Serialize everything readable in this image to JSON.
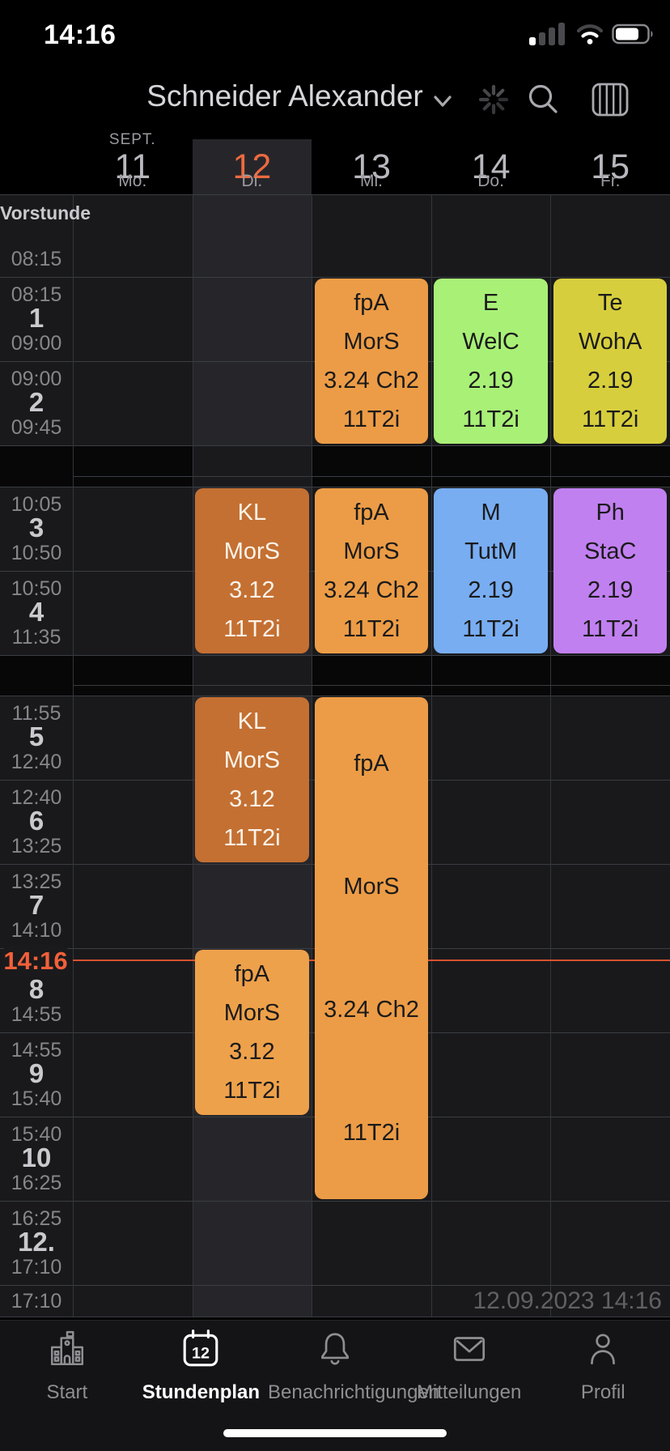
{
  "status_bar": {
    "time": "14:16"
  },
  "header": {
    "title": "Schneider Alexander",
    "icons": [
      "chevron-down",
      "loading-spinner",
      "search",
      "week-view"
    ]
  },
  "week_header": {
    "days": [
      {
        "num": "11",
        "weekday": "Mo.",
        "month": "SEPT.",
        "selected": false
      },
      {
        "num": "12",
        "weekday": "Di.",
        "month": "",
        "selected": true
      },
      {
        "num": "13",
        "weekday": "Mi.",
        "month": "",
        "selected": false
      },
      {
        "num": "14",
        "weekday": "Do.",
        "month": "",
        "selected": false
      },
      {
        "num": "15",
        "weekday": "Fr.",
        "month": "",
        "selected": false
      }
    ]
  },
  "grid": {
    "rows": [
      {
        "id": "vor",
        "kind": "vorstunde",
        "label": "Vorstunde",
        "end": "08:15"
      },
      {
        "id": "1",
        "kind": "period",
        "start": "08:15",
        "num": "1",
        "end": "09:00"
      },
      {
        "id": "2",
        "kind": "period",
        "start": "09:00",
        "num": "2",
        "end": "09:45"
      },
      {
        "id": "b1",
        "kind": "break"
      },
      {
        "id": "3",
        "kind": "period",
        "start": "10:05",
        "num": "3",
        "end": "10:50"
      },
      {
        "id": "4",
        "kind": "period",
        "start": "10:50",
        "num": "4",
        "end": "11:35"
      },
      {
        "id": "b2",
        "kind": "break"
      },
      {
        "id": "5",
        "kind": "period",
        "start": "11:55",
        "num": "5",
        "end": "12:40"
      },
      {
        "id": "6",
        "kind": "period",
        "start": "12:40",
        "num": "6",
        "end": "13:25"
      },
      {
        "id": "7",
        "kind": "period",
        "start": "13:25",
        "num": "7",
        "end": "14:10"
      },
      {
        "id": "8",
        "kind": "period",
        "start": "",
        "num": "8",
        "end": "14:55",
        "start_hidden": true
      },
      {
        "id": "9",
        "kind": "period",
        "start": "14:55",
        "num": "9",
        "end": "15:40"
      },
      {
        "id": "10",
        "kind": "period",
        "start": "15:40",
        "num": "10",
        "end": "16:25"
      },
      {
        "id": "12",
        "kind": "period",
        "start": "16:25",
        "num": "12.",
        "end": "17:10"
      },
      {
        "id": "tail",
        "kind": "tail",
        "start": "17:10"
      }
    ],
    "current_time": {
      "label": "14:16",
      "line_color": "#D6512F"
    },
    "footer_timestamp": "12.09.2023 14:16"
  },
  "lessons": [
    {
      "day": "tue",
      "from": "3",
      "to": "4",
      "subject": "KL",
      "teacher": "MorS",
      "room": "3.12",
      "group": "11T2i",
      "bg": "#C47033",
      "fg": "#FBF3E9"
    },
    {
      "day": "tue",
      "from": "5",
      "to": "6",
      "subject": "KL",
      "teacher": "MorS",
      "room": "3.12",
      "group": "11T2i",
      "bg": "#C47033",
      "fg": "#FBF3E9"
    },
    {
      "day": "tue",
      "from": "8",
      "to": "9",
      "subject": "fpA",
      "teacher": "MorS",
      "room": "3.12",
      "group": "11T2i",
      "bg": "#EEA14B",
      "fg": "#1B1B1B"
    },
    {
      "day": "wed",
      "from": "1",
      "to": "2",
      "subject": "fpA",
      "teacher": "MorS",
      "room": "3.24 Ch2",
      "group": "11T2i",
      "bg": "#EC9C46",
      "fg": "#1B1B1B"
    },
    {
      "day": "wed",
      "from": "3",
      "to": "4",
      "subject": "fpA",
      "teacher": "MorS",
      "room": "3.24 Ch2",
      "group": "11T2i",
      "bg": "#EC9C46",
      "fg": "#1B1B1B"
    },
    {
      "day": "wed",
      "from": "5",
      "to": "10",
      "subject": "fpA",
      "teacher": "MorS",
      "room": "3.24 Ch2",
      "group": "11T2i",
      "bg": "#EC9C46",
      "fg": "#1B1B1B"
    },
    {
      "day": "thu",
      "from": "1",
      "to": "2",
      "subject": "E",
      "teacher": "WelC",
      "room": "2.19",
      "group": "11T2i",
      "bg": "#A9F077",
      "fg": "#1B1B1B"
    },
    {
      "day": "thu",
      "from": "3",
      "to": "4",
      "subject": "M",
      "teacher": "TutM",
      "room": "2.19",
      "group": "11T2i",
      "bg": "#78ADF2",
      "fg": "#1B1B1B"
    },
    {
      "day": "fri",
      "from": "1",
      "to": "2",
      "subject": "Te",
      "teacher": "WohA",
      "room": "2.19",
      "group": "11T2i",
      "bg": "#D7CE3D",
      "fg": "#1B1B1B"
    },
    {
      "day": "fri",
      "from": "3",
      "to": "4",
      "subject": "Ph",
      "teacher": "StaC",
      "room": "2.19",
      "group": "11T2i",
      "bg": "#C180F0",
      "fg": "#1B1B1B"
    }
  ],
  "tab_bar": {
    "items": [
      {
        "id": "start",
        "label": "Start",
        "icon": "school-icon",
        "active": false
      },
      {
        "id": "stundenplan",
        "label": "Stundenplan",
        "icon": "calendar-icon",
        "active": true,
        "badge": "12"
      },
      {
        "id": "benachrichtigungen",
        "label": "Benachrichtigungen",
        "icon": "bell-icon",
        "active": false
      },
      {
        "id": "mitteilungen",
        "label": "Mitteilungen",
        "icon": "envelope-icon",
        "active": false
      },
      {
        "id": "profil",
        "label": "Profil",
        "icon": "person-icon",
        "active": false
      }
    ]
  },
  "colors": {
    "accent_orange": "#ED6A40",
    "timeline_red": "#D6512F",
    "selected_column_bg": "#26262A",
    "cell_bg": "#19191B",
    "break_bg": "#070708"
  }
}
